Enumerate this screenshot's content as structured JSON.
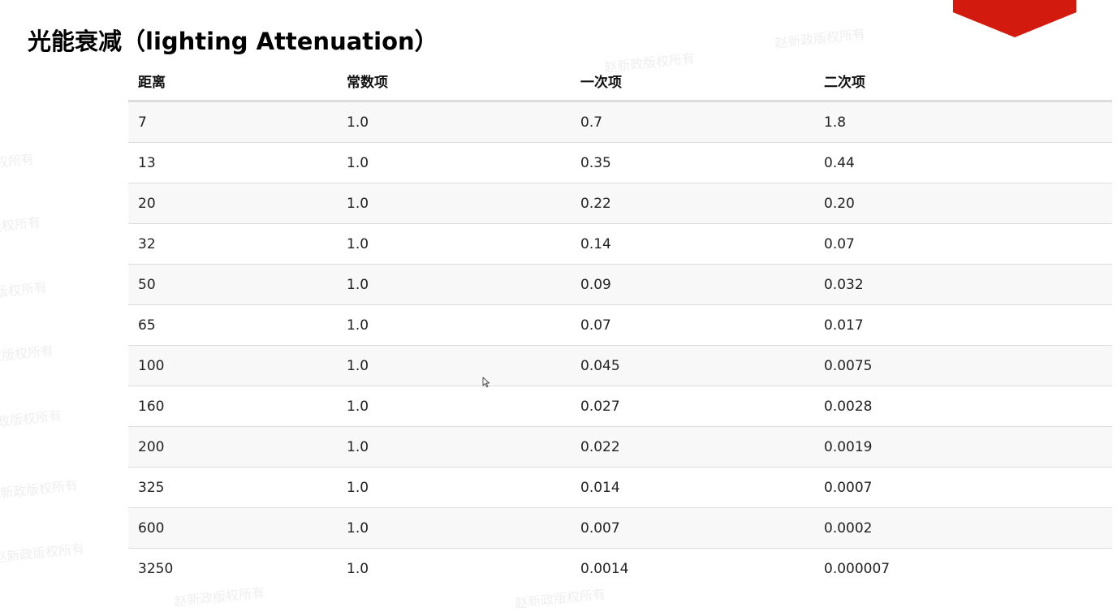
{
  "title": "光能衰减（lighting Attenuation）",
  "watermark_text": "赵新政版权所有",
  "accent_color": "#d31a0e",
  "table": {
    "headers": [
      "距离",
      "常数项",
      "一次项",
      "二次项"
    ],
    "rows": [
      [
        "7",
        "1.0",
        "0.7",
        "1.8"
      ],
      [
        "13",
        "1.0",
        "0.35",
        "0.44"
      ],
      [
        "20",
        "1.0",
        "0.22",
        "0.20"
      ],
      [
        "32",
        "1.0",
        "0.14",
        "0.07"
      ],
      [
        "50",
        "1.0",
        "0.09",
        "0.032"
      ],
      [
        "65",
        "1.0",
        "0.07",
        "0.017"
      ],
      [
        "100",
        "1.0",
        "0.045",
        "0.0075"
      ],
      [
        "160",
        "1.0",
        "0.027",
        "0.0028"
      ],
      [
        "200",
        "1.0",
        "0.022",
        "0.0019"
      ],
      [
        "325",
        "1.0",
        "0.014",
        "0.0007"
      ],
      [
        "600",
        "1.0",
        "0.007",
        "0.0002"
      ],
      [
        "3250",
        "1.0",
        "0.0014",
        "0.000007"
      ]
    ]
  },
  "cursor_icon": "mouse-pointer-icon"
}
